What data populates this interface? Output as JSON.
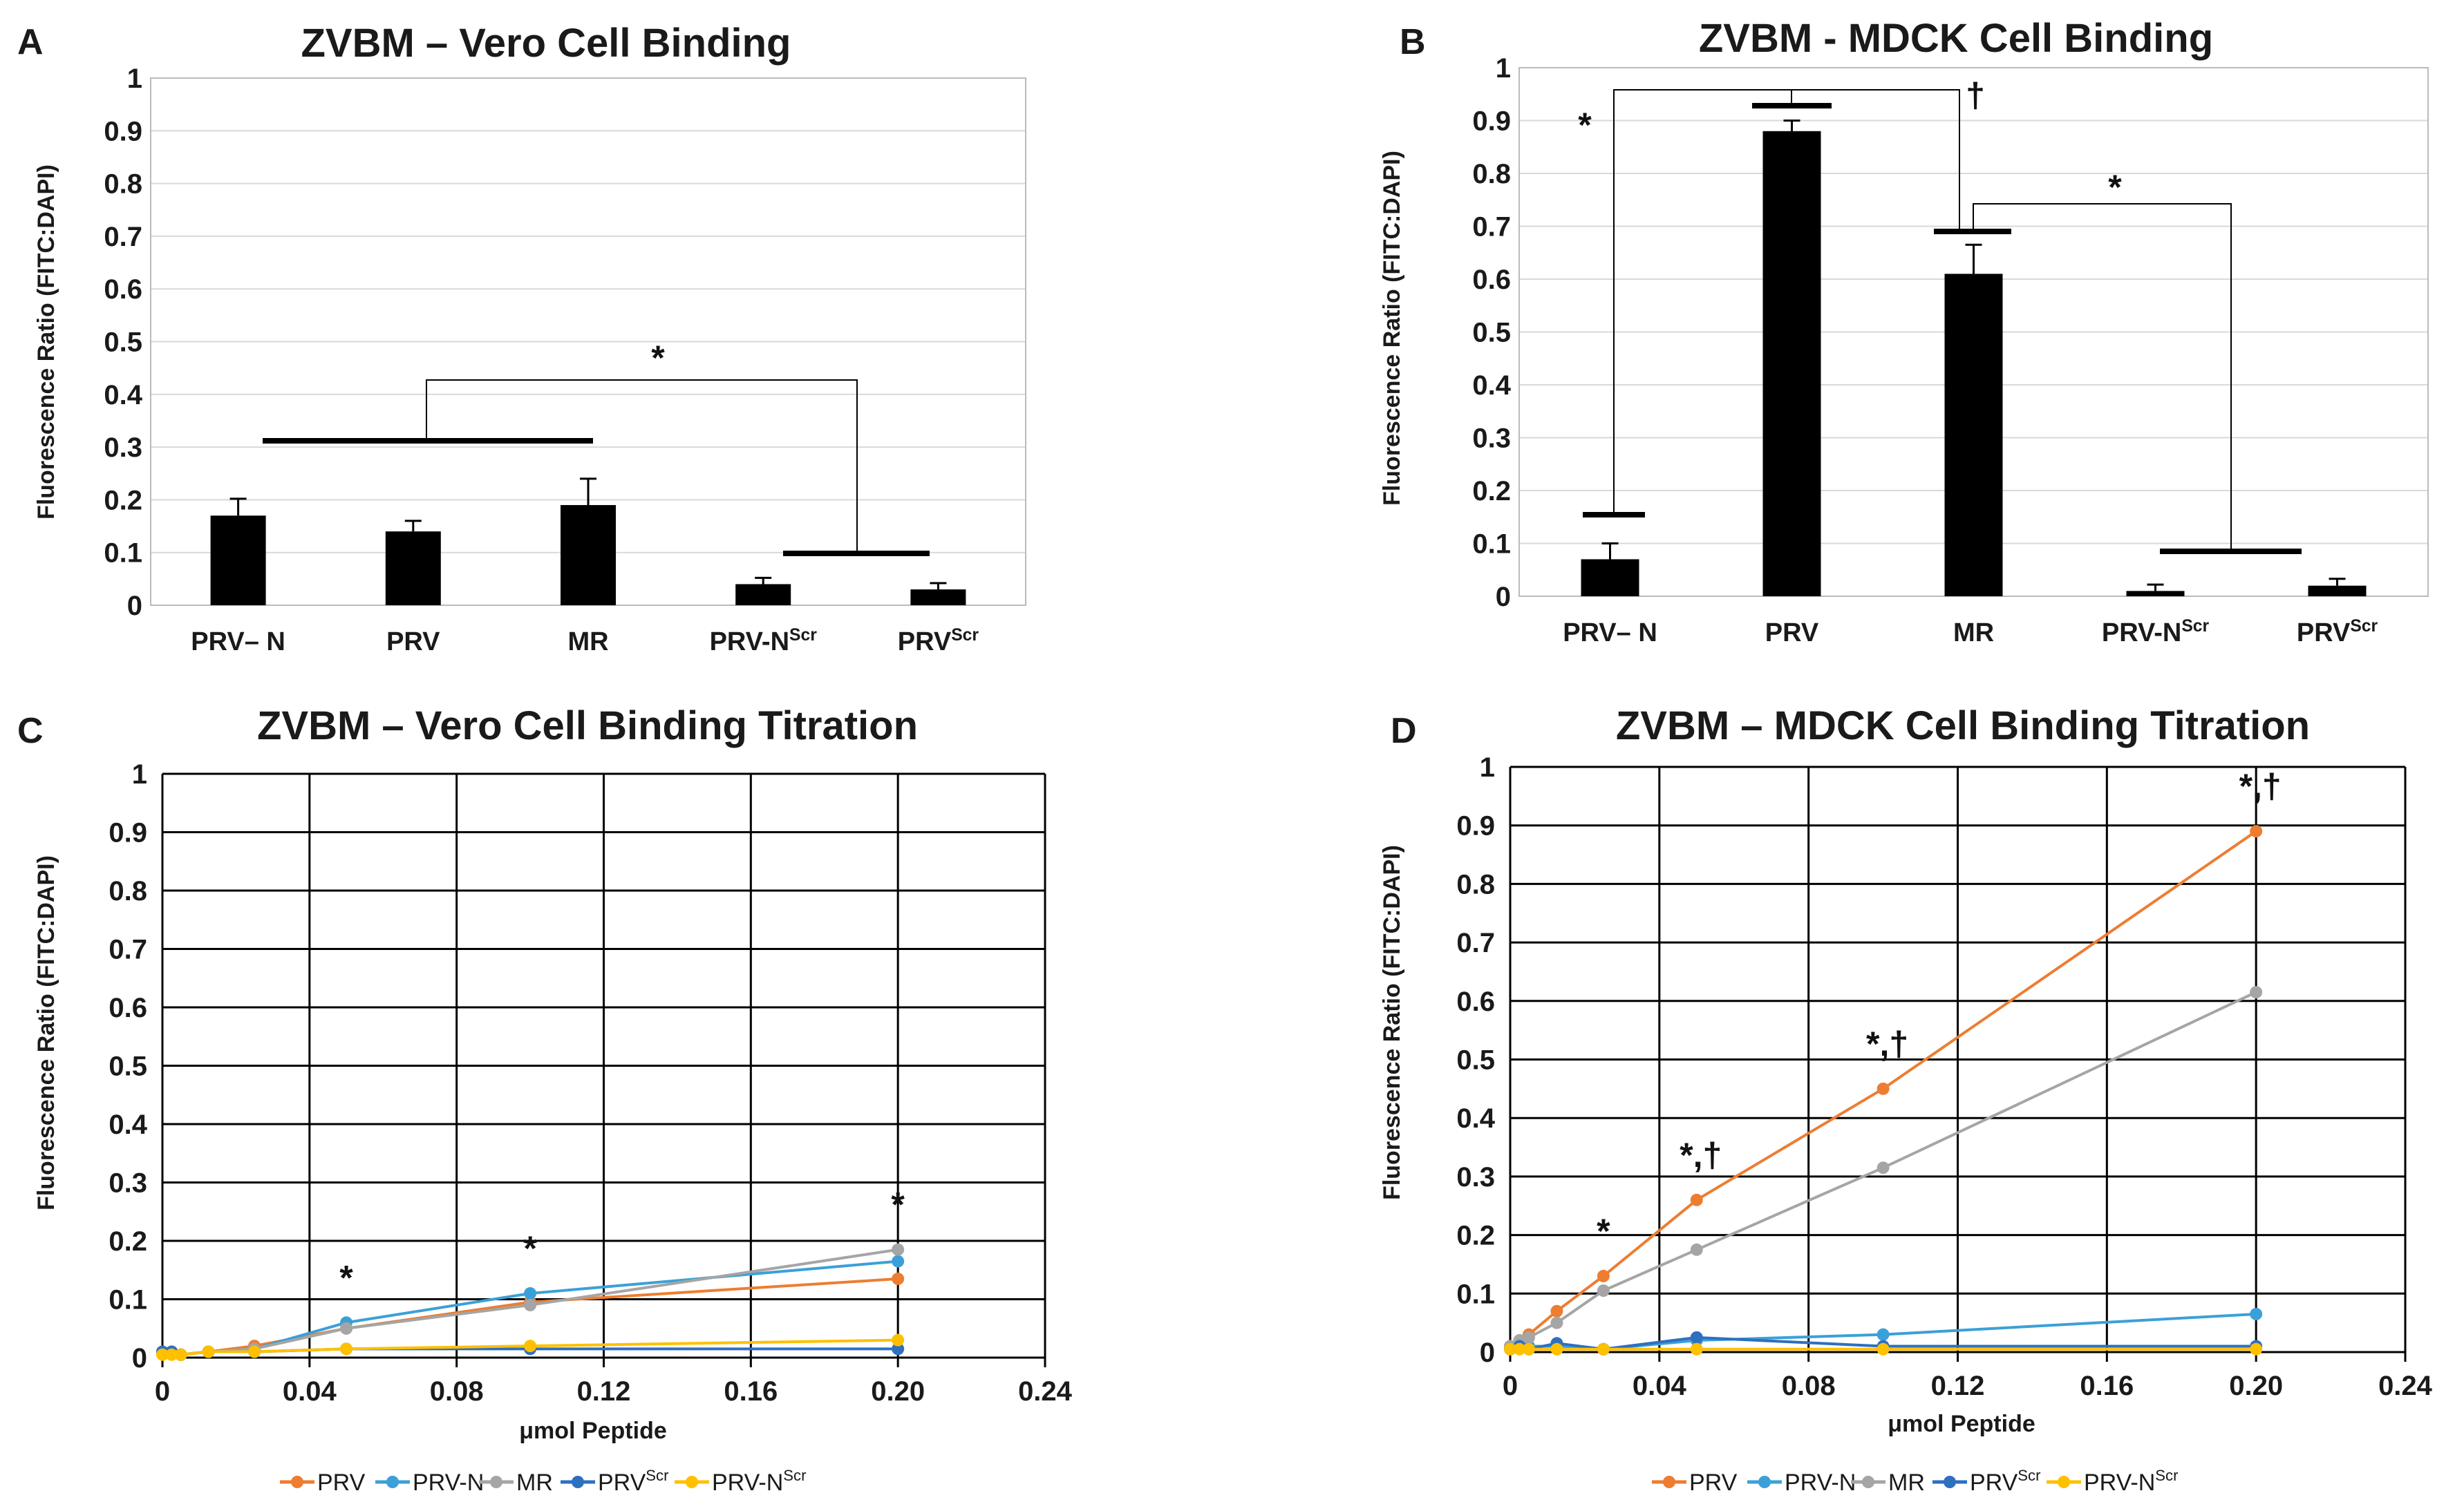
{
  "colors": {
    "PRV": "#ed7d31",
    "PRV-N": "#3ba0d8",
    "MR": "#a5a5a5",
    "PRVScr": "#2e6fc0",
    "PRV-NScr": "#ffc000",
    "bar": "#000000"
  },
  "chart_data": [
    {
      "panel": "A",
      "type": "bar",
      "title": "ZVBM – Vero Cell Binding",
      "ylabel": "Fluorescence Ratio (FITC:DAPI)",
      "ylim": [
        0,
        1
      ],
      "yticks": [
        "1",
        "0.9",
        "0.8",
        "0.7",
        "0.6",
        "0.5",
        "0.4",
        "0.3",
        "0.2",
        "0.1",
        "0"
      ],
      "categories": [
        {
          "base": "PRV– N",
          "sup": ""
        },
        {
          "base": "PRV",
          "sup": ""
        },
        {
          "base": "MR",
          "sup": ""
        },
        {
          "base": "PRV-N",
          "sup": "Scr"
        },
        {
          "base": "PRV",
          "sup": "Scr"
        }
      ],
      "values": [
        0.17,
        0.14,
        0.19,
        0.04,
        0.03
      ],
      "errors": [
        0.032,
        0.02,
        0.05,
        0.012,
        0.012
      ],
      "annotations": [
        "*"
      ]
    },
    {
      "panel": "B",
      "type": "bar",
      "title": "ZVBM - MDCK Cell Binding",
      "ylabel": "Fluorescence Ratio (FITC:DAPI)",
      "ylim": [
        0,
        1
      ],
      "yticks": [
        "1",
        "0.9",
        "0.8",
        "0.7",
        "0.6",
        "0.5",
        "0.4",
        "0.3",
        "0.2",
        "0.1",
        "0"
      ],
      "categories": [
        {
          "base": "PRV– N",
          "sup": ""
        },
        {
          "base": "PRV",
          "sup": ""
        },
        {
          "base": "MR",
          "sup": ""
        },
        {
          "base": "PRV-N",
          "sup": "Scr"
        },
        {
          "base": "PRV",
          "sup": "Scr"
        }
      ],
      "values": [
        0.07,
        0.88,
        0.61,
        0.01,
        0.02
      ],
      "errors": [
        0.03,
        0.02,
        0.055,
        0.012,
        0.013
      ],
      "annotations": [
        "*",
        "†",
        "*"
      ]
    },
    {
      "panel": "C",
      "type": "line",
      "title": "ZVBM – Vero Cell Binding Titration",
      "xlabel": "μmol Peptide",
      "ylabel": "Fluorescence Ratio (FITC:DAPI)",
      "xlim": [
        0,
        0.24
      ],
      "ylim": [
        0,
        1
      ],
      "xticks": [
        "0",
        "0.04",
        "0.08",
        "0.12",
        "0.16",
        "0.20",
        "0.24"
      ],
      "yticks": [
        "1",
        "0.9",
        "0.8",
        "0.7",
        "0.6",
        "0.5",
        "0.4",
        "0.3",
        "0.2",
        "0.1",
        "0"
      ],
      "x": [
        0,
        0.0025,
        0.005,
        0.0125,
        0.025,
        0.05,
        0.1,
        0.2
      ],
      "series": [
        {
          "name": "PRV",
          "sup": "",
          "key": "PRV",
          "values": [
            0.01,
            0.01,
            0.005,
            0.01,
            0.02,
            0.05,
            0.095,
            0.135
          ]
        },
        {
          "name": "PRV-N",
          "sup": "",
          "key": "PRV-N",
          "values": [
            0.01,
            0.01,
            0.005,
            0.01,
            0.015,
            0.06,
            0.11,
            0.165
          ]
        },
        {
          "name": "MR",
          "sup": "",
          "key": "MR",
          "values": [
            0.01,
            0.01,
            0.005,
            0.01,
            0.015,
            0.05,
            0.09,
            0.185
          ]
        },
        {
          "name": "PRV",
          "sup": "Scr",
          "key": "PRVScr",
          "values": [
            0.01,
            0.01,
            0.005,
            0.01,
            0.01,
            0.015,
            0.015,
            0.015
          ]
        },
        {
          "name": "PRV-N",
          "sup": "Scr",
          "key": "PRV-NScr",
          "values": [
            0.005,
            0.005,
            0.005,
            0.01,
            0.01,
            0.015,
            0.02,
            0.03
          ]
        }
      ],
      "annotations": [
        {
          "x": 0.05,
          "text": "*"
        },
        {
          "x": 0.1,
          "text": "*"
        },
        {
          "x": 0.2,
          "text": "*"
        }
      ]
    },
    {
      "panel": "D",
      "type": "line",
      "title": "ZVBM – MDCK Cell Binding Titration",
      "xlabel": "μmol Peptide",
      "ylabel": "Fluorescence Ratio (FITC:DAPI)",
      "xlim": [
        0,
        0.24
      ],
      "ylim": [
        0,
        1
      ],
      "xticks": [
        "0",
        "0.04",
        "0.08",
        "0.12",
        "0.16",
        "0.20",
        "0.24"
      ],
      "yticks": [
        "1",
        "0.9",
        "0.8",
        "0.7",
        "0.6",
        "0.5",
        "0.4",
        "0.3",
        "0.2",
        "0.1",
        "0"
      ],
      "x": [
        0,
        0.0025,
        0.005,
        0.0125,
        0.025,
        0.05,
        0.1,
        0.2
      ],
      "series": [
        {
          "name": "PRV",
          "sup": "",
          "key": "PRV",
          "values": [
            0.01,
            0.02,
            0.03,
            0.07,
            0.13,
            0.26,
            0.45,
            0.89
          ]
        },
        {
          "name": "PRV-N",
          "sup": "",
          "key": "PRV-N",
          "values": [
            0.005,
            0.01,
            0.01,
            0.01,
            0.005,
            0.02,
            0.03,
            0.065
          ]
        },
        {
          "name": "MR",
          "sup": "",
          "key": "MR",
          "values": [
            0.01,
            0.02,
            0.025,
            0.05,
            0.105,
            0.175,
            0.315,
            0.615
          ]
        },
        {
          "name": "PRV",
          "sup": "Scr",
          "key": "PRVScr",
          "values": [
            0.005,
            0.01,
            0.005,
            0.015,
            0.005,
            0.025,
            0.01,
            0.01
          ]
        },
        {
          "name": "PRV-N",
          "sup": "Scr",
          "key": "PRV-NScr",
          "values": [
            0.005,
            0.005,
            0.005,
            0.005,
            0.005,
            0.005,
            0.005,
            0.005
          ]
        }
      ],
      "annotations": [
        {
          "x": 0.025,
          "text": "*"
        },
        {
          "x": 0.05,
          "text": "*,†"
        },
        {
          "x": 0.1,
          "text": "*,†"
        },
        {
          "x": 0.2,
          "text": "*,†"
        }
      ]
    }
  ]
}
